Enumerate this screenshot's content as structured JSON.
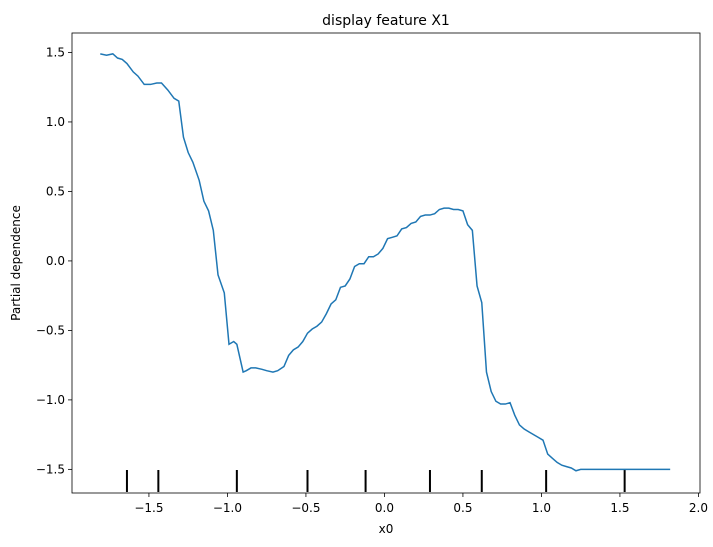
{
  "chart_data": {
    "type": "line",
    "title": "display feature X1",
    "xlabel": "x0",
    "ylabel": "Partial dependence",
    "xlim": [
      -1.99,
      2.01
    ],
    "ylim": [
      -1.67,
      1.64
    ],
    "xticks": [
      -1.5,
      -1.0,
      -0.5,
      0.0,
      0.5,
      1.0,
      1.5,
      2.0
    ],
    "xtick_labels": [
      "−1.5",
      "−1.0",
      "−0.5",
      "0.0",
      "0.5",
      "1.0",
      "1.5",
      "2.0"
    ],
    "yticks": [
      -1.5,
      -1.0,
      -0.5,
      0.0,
      0.5,
      1.0,
      1.5
    ],
    "ytick_labels": [
      "−1.5",
      "−1.0",
      "−0.5",
      "0.0",
      "0.5",
      "1.0",
      "1.5"
    ],
    "grid": false,
    "line_color": "#1f77b4",
    "deciles": [
      -1.64,
      -1.44,
      -0.94,
      -0.49,
      -0.12,
      0.29,
      0.62,
      1.03,
      1.53
    ],
    "series": [
      {
        "x": [
          -1.81,
          -1.77,
          -1.73,
          -1.7,
          -1.67,
          -1.64,
          -1.6,
          -1.57,
          -1.53,
          -1.49,
          -1.45,
          -1.42,
          -1.38,
          -1.34,
          -1.31,
          -1.28,
          -1.25,
          -1.22,
          -1.18,
          -1.15,
          -1.12,
          -1.09,
          -1.06,
          -1.02,
          -0.99,
          -0.96,
          -0.94,
          -0.9,
          -0.88,
          -0.85,
          -0.82,
          -0.78,
          -0.75,
          -0.71,
          -0.68,
          -0.64,
          -0.61,
          -0.58,
          -0.55,
          -0.52,
          -0.49,
          -0.46,
          -0.43,
          -0.4,
          -0.37,
          -0.34,
          -0.31,
          -0.28,
          -0.25,
          -0.22,
          -0.19,
          -0.16,
          -0.13,
          -0.1,
          -0.07,
          -0.04,
          -0.01,
          0.02,
          0.05,
          0.08,
          0.11,
          0.14,
          0.17,
          0.2,
          0.23,
          0.26,
          0.29,
          0.32,
          0.35,
          0.38,
          0.41,
          0.44,
          0.47,
          0.5,
          0.53,
          0.56,
          0.59,
          0.62,
          0.65,
          0.68,
          0.71,
          0.74,
          0.77,
          0.8,
          0.83,
          0.86,
          0.89,
          0.92,
          0.95,
          0.98,
          1.01,
          1.04,
          1.07,
          1.1,
          1.13,
          1.16,
          1.19,
          1.22,
          1.25,
          1.28,
          1.31,
          1.34,
          1.37,
          1.4,
          1.43,
          1.46,
          1.49,
          1.52,
          1.55,
          1.58,
          1.61,
          1.64,
          1.67,
          1.7,
          1.73,
          1.76,
          1.79,
          1.82
        ],
        "y": [
          1.49,
          1.48,
          1.49,
          1.46,
          1.45,
          1.42,
          1.36,
          1.33,
          1.27,
          1.27,
          1.28,
          1.28,
          1.23,
          1.17,
          1.15,
          0.89,
          0.78,
          0.71,
          0.58,
          0.43,
          0.36,
          0.22,
          -0.1,
          -0.23,
          -0.6,
          -0.58,
          -0.6,
          -0.8,
          -0.79,
          -0.77,
          -0.77,
          -0.78,
          -0.79,
          -0.8,
          -0.79,
          -0.76,
          -0.68,
          -0.64,
          -0.62,
          -0.58,
          -0.52,
          -0.49,
          -0.47,
          -0.44,
          -0.38,
          -0.31,
          -0.28,
          -0.19,
          -0.18,
          -0.13,
          -0.04,
          -0.02,
          -0.02,
          0.03,
          0.03,
          0.05,
          0.09,
          0.16,
          0.17,
          0.18,
          0.23,
          0.24,
          0.27,
          0.28,
          0.32,
          0.33,
          0.33,
          0.34,
          0.37,
          0.38,
          0.38,
          0.37,
          0.37,
          0.36,
          0.26,
          0.22,
          -0.18,
          -0.3,
          -0.8,
          -0.94,
          -1.01,
          -1.03,
          -1.03,
          -1.02,
          -1.11,
          -1.18,
          -1.21,
          -1.23,
          -1.25,
          -1.27,
          -1.29,
          -1.39,
          -1.42,
          -1.45,
          -1.47,
          -1.48,
          -1.49,
          -1.51,
          -1.5,
          -1.5,
          -1.5,
          -1.5,
          -1.5,
          -1.5,
          -1.5,
          -1.5,
          -1.5,
          -1.5,
          -1.5,
          -1.5,
          -1.5,
          -1.5,
          -1.5,
          -1.5,
          -1.5,
          -1.5,
          -1.5,
          -1.5
        ]
      }
    ]
  }
}
